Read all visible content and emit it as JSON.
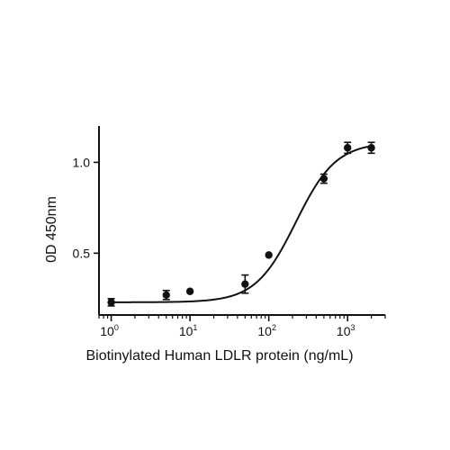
{
  "chart_data": {
    "type": "scatter",
    "xlabel": "Biotinylated Human LDLR protein (ng/mL)",
    "ylabel": "0D 450nm",
    "x_scale": "log",
    "xlim": [
      0.7,
      3000
    ],
    "ylim": [
      0.16,
      1.2
    ],
    "x_ticks": [
      {
        "value": 1,
        "base": "10",
        "exp": "0"
      },
      {
        "value": 10,
        "base": "10",
        "exp": "1"
      },
      {
        "value": 100,
        "base": "10",
        "exp": "2"
      },
      {
        "value": 1000,
        "base": "10",
        "exp": "3"
      }
    ],
    "y_ticks": [
      {
        "value": 0.5,
        "label": "0.5"
      },
      {
        "value": 1.0,
        "label": "1.0"
      }
    ],
    "grid": false,
    "series": [
      {
        "points": [
          {
            "x": 1,
            "y": 0.23,
            "err": 0.02
          },
          {
            "x": 5,
            "y": 0.27,
            "err": 0.025
          },
          {
            "x": 10,
            "y": 0.29,
            "err": 0.0
          },
          {
            "x": 50,
            "y": 0.33,
            "err": 0.05
          },
          {
            "x": 100,
            "y": 0.49,
            "err": 0.0
          },
          {
            "x": 500,
            "y": 0.91,
            "err": 0.025
          },
          {
            "x": 1000,
            "y": 1.08,
            "err": 0.03
          },
          {
            "x": 2000,
            "y": 1.08,
            "err": 0.03
          }
        ],
        "fit": {
          "model": "4PL",
          "bottom": 0.23,
          "top": 1.11,
          "ec50": 220,
          "hill": 1.7
        }
      }
    ]
  }
}
